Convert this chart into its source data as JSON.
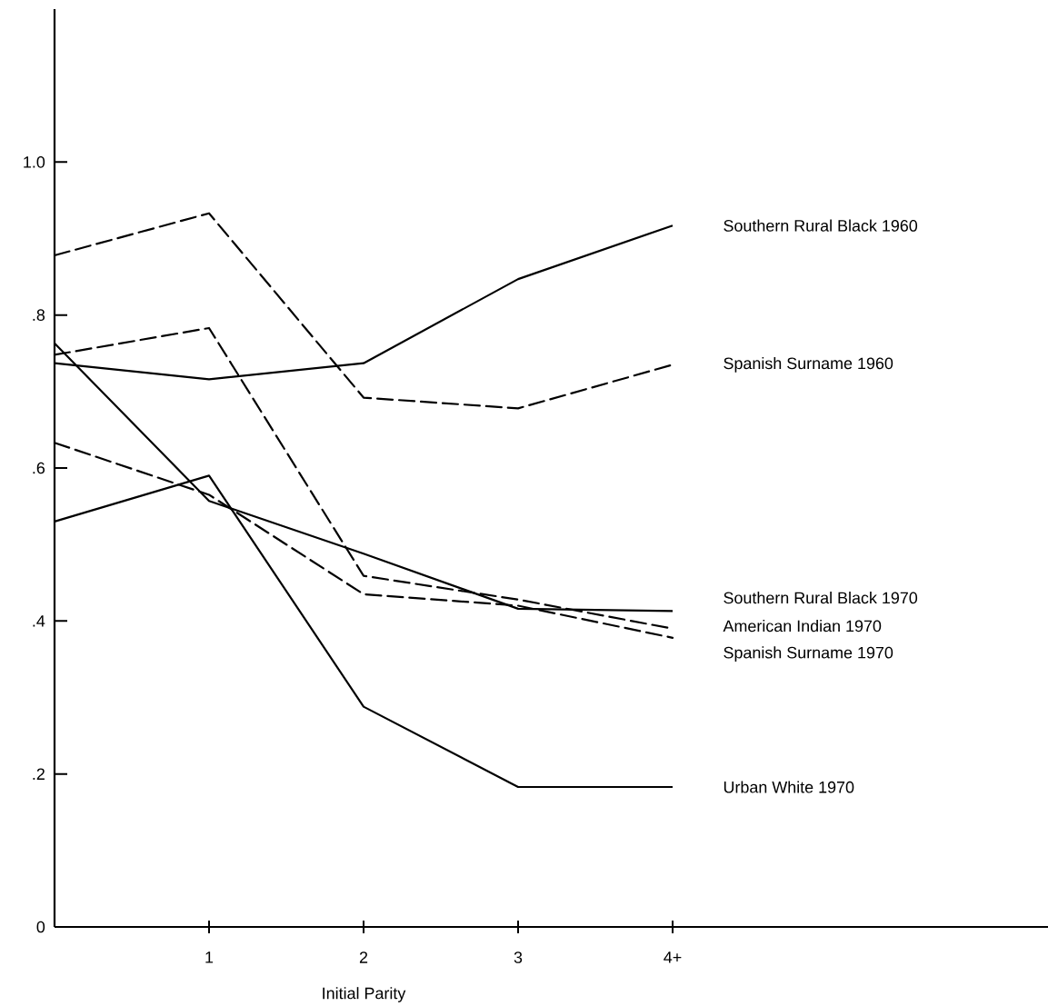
{
  "chart_data": {
    "type": "line",
    "xlabel": "Initial Parity",
    "categories": [
      null,
      "1",
      "2",
      "3",
      "4+"
    ],
    "ylim": [
      0,
      1.2
    ],
    "yticks": [
      0,
      {
        "value": 0.2,
        "label": ".2"
      },
      {
        "value": 0.4,
        "label": ".4"
      },
      {
        "value": 0.6,
        "label": ".6"
      },
      {
        "value": 0.8,
        "label": ".8"
      },
      {
        "value": 1.0,
        "label": "1.0"
      }
    ],
    "marker": "none",
    "series": [
      {
        "name": "Southern Rural Black  1960",
        "color": "#000000",
        "line_style": "solid",
        "values": [
          0.737,
          0.716,
          0.737,
          0.847,
          0.917
        ]
      },
      {
        "name": "Spanish Surname  1960",
        "color": "#000000",
        "line_style": "dashed",
        "values": [
          0.878,
          0.933,
          0.692,
          0.678,
          0.735
        ]
      },
      {
        "name": "Southern Rural Black  1970",
        "color": "#000000",
        "line_style": "solid",
        "values": [
          0.763,
          0.557,
          0.488,
          0.416,
          0.413
        ]
      },
      {
        "name": "American Indian  1970",
        "color": "#000000",
        "line_style": "dashed",
        "values": [
          0.748,
          0.783,
          0.459,
          0.428,
          0.39
        ]
      },
      {
        "name": "Spanish Surname  1970",
        "color": "#000000",
        "line_style": "dashed",
        "values": [
          0.633,
          0.565,
          0.435,
          0.42,
          0.378
        ]
      },
      {
        "name": "Urban White  1970",
        "color": "#000000",
        "line_style": "solid",
        "values": [
          0.53,
          0.59,
          0.288,
          0.183,
          0.183
        ]
      }
    ]
  }
}
